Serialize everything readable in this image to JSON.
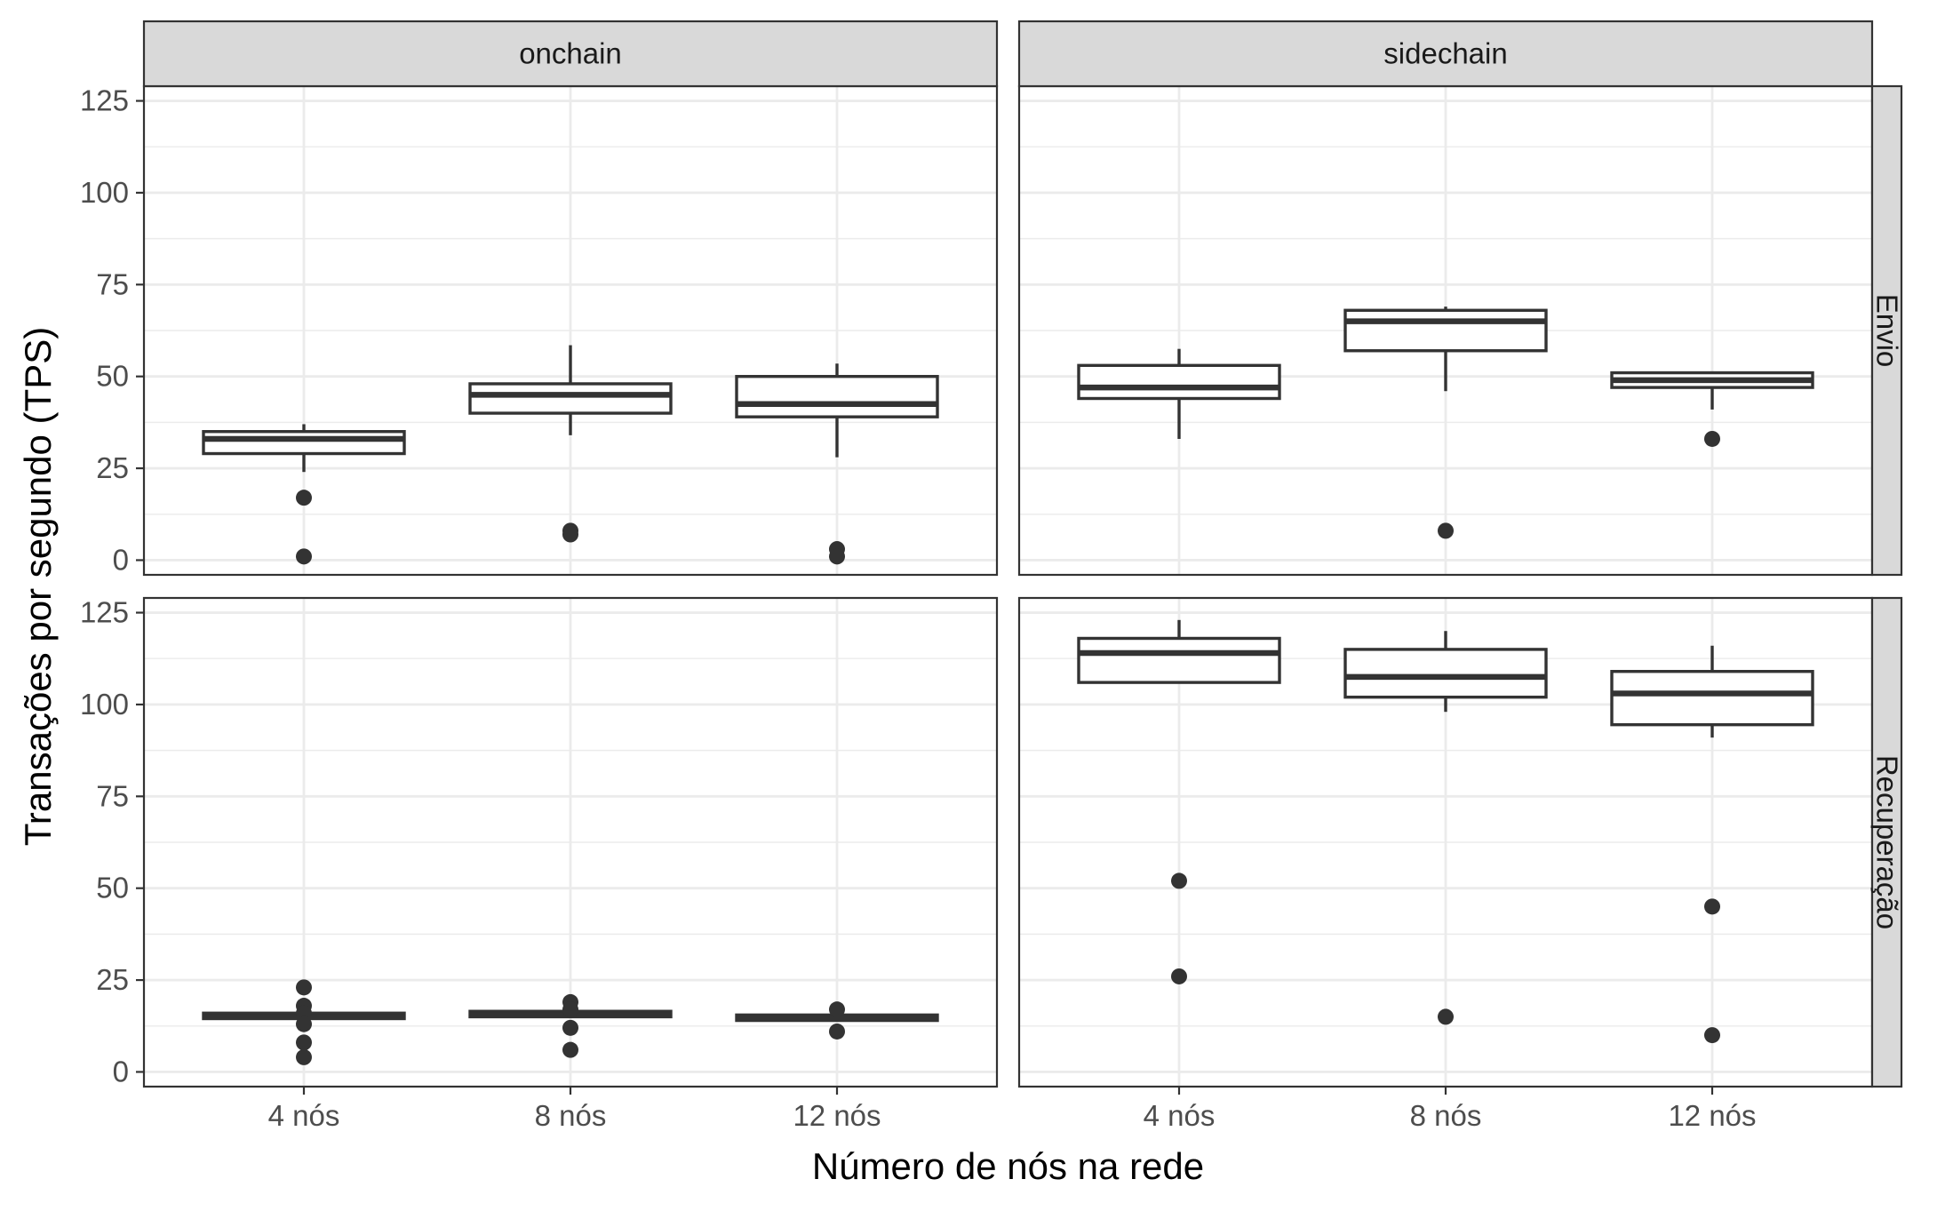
{
  "chart_data": {
    "type": "boxplot",
    "xlabel": "Número de nós na rede",
    "ylabel": "Transações por segundo (TPS)",
    "categories": [
      "4 nós",
      "8 nós",
      "12 nós"
    ],
    "ylim": [
      -4,
      129
    ],
    "yticks": [
      0,
      25,
      50,
      75,
      100,
      125
    ],
    "grid": true,
    "facet_columns": [
      "onchain",
      "sidechain"
    ],
    "facet_rows": [
      "Envio",
      "Recuperação"
    ],
    "colors": {
      "panel_border": "#333333",
      "strip_fill": "#d9d9d9",
      "grid_major": "#ebebeb",
      "box_line": "#333333",
      "box_fill": "#ffffff",
      "outlier": "#333333"
    },
    "panels": [
      {
        "column": "onchain",
        "row": "Envio",
        "boxes": [
          {
            "category": "4 nós",
            "lower_whisker": 24,
            "q1": 29,
            "median": 33,
            "q3": 35,
            "upper_whisker": 37,
            "outliers": [
              17,
              1
            ]
          },
          {
            "category": "8 nós",
            "lower_whisker": 34,
            "q1": 40,
            "median": 45,
            "q3": 48,
            "upper_whisker": 58.5,
            "outliers": [
              8,
              7
            ]
          },
          {
            "category": "12 nós",
            "lower_whisker": 28,
            "q1": 39,
            "median": 42.5,
            "q3": 50,
            "upper_whisker": 53.5,
            "outliers": [
              3,
              1
            ]
          }
        ]
      },
      {
        "column": "sidechain",
        "row": "Envio",
        "boxes": [
          {
            "category": "4 nós",
            "lower_whisker": 33,
            "q1": 44,
            "median": 47,
            "q3": 53,
            "upper_whisker": 57.5,
            "outliers": []
          },
          {
            "category": "8 nós",
            "lower_whisker": 46,
            "q1": 57,
            "median": 65,
            "q3": 68,
            "upper_whisker": 69,
            "outliers": [
              8
            ]
          },
          {
            "category": "12 nós",
            "lower_whisker": 41,
            "q1": 47,
            "median": 49,
            "q3": 51,
            "upper_whisker": 51,
            "outliers": [
              33
            ]
          }
        ]
      },
      {
        "column": "onchain",
        "row": "Recuperação",
        "boxes": [
          {
            "category": "4 nós",
            "lower_whisker": 14.5,
            "q1": 14.5,
            "median": 15,
            "q3": 16,
            "upper_whisker": 16,
            "outliers": [
              23,
              18,
              16,
              13,
              8,
              4
            ]
          },
          {
            "category": "8 nós",
            "lower_whisker": 15,
            "q1": 15,
            "median": 15.5,
            "q3": 16.5,
            "upper_whisker": 16.5,
            "outliers": [
              19,
              17,
              12,
              6
            ]
          },
          {
            "category": "12 nós",
            "lower_whisker": 14,
            "q1": 14,
            "median": 14.5,
            "q3": 15.5,
            "upper_whisker": 15.5,
            "outliers": [
              17,
              11
            ]
          }
        ]
      },
      {
        "column": "sidechain",
        "row": "Recuperação",
        "boxes": [
          {
            "category": "4 nós",
            "lower_whisker": 106,
            "q1": 106,
            "median": 114,
            "q3": 118,
            "upper_whisker": 123,
            "outliers": [
              52,
              26
            ]
          },
          {
            "category": "8 nós",
            "lower_whisker": 98,
            "q1": 102,
            "median": 107.5,
            "q3": 115,
            "upper_whisker": 120,
            "outliers": [
              15
            ]
          },
          {
            "category": "12 nós",
            "lower_whisker": 91,
            "q1": 94.5,
            "median": 103,
            "q3": 109,
            "upper_whisker": 116,
            "outliers": [
              45,
              10
            ]
          }
        ]
      }
    ]
  }
}
